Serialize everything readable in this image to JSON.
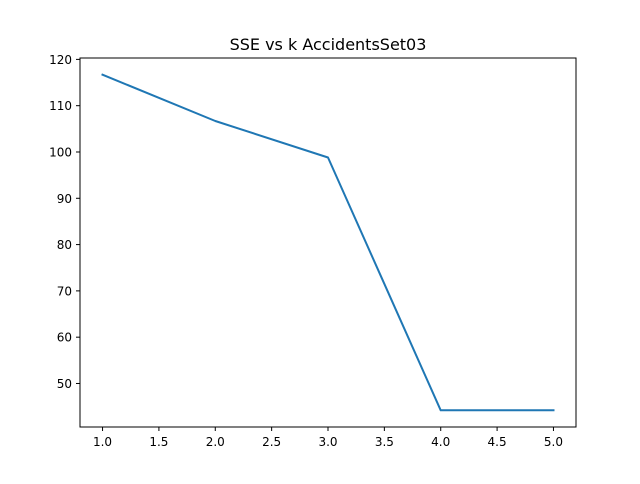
{
  "chart_data": {
    "type": "line",
    "title": "SSE vs k AccidentsSet03",
    "xlabel": "",
    "ylabel": "",
    "xlim": [
      0.8,
      5.2
    ],
    "ylim": [
      40.6,
      120.3
    ],
    "xticks": [
      1.0,
      1.5,
      2.0,
      2.5,
      3.0,
      3.5,
      4.0,
      4.5,
      5.0
    ],
    "xtick_labels": [
      "1.0",
      "1.5",
      "2.0",
      "2.5",
      "3.0",
      "3.5",
      "4.0",
      "4.5",
      "5.0"
    ],
    "yticks": [
      50,
      60,
      70,
      80,
      90,
      100,
      110,
      120
    ],
    "ytick_labels": [
      "50",
      "60",
      "70",
      "80",
      "90",
      "100",
      "110",
      "120"
    ],
    "grid": false,
    "series": [
      {
        "color": "#1f77b4",
        "x": [
          1,
          2,
          3,
          4,
          5
        ],
        "y": [
          116.7,
          106.7,
          98.8,
          44.2,
          44.2
        ]
      }
    ]
  }
}
